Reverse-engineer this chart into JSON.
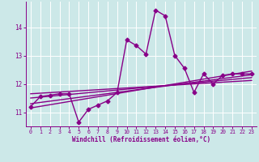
{
  "xlabel": "Windchill (Refroidissement éolien,°C)",
  "x_values": [
    0,
    1,
    2,
    3,
    4,
    5,
    6,
    7,
    8,
    9,
    10,
    11,
    12,
    13,
    14,
    15,
    16,
    17,
    18,
    19,
    20,
    21,
    22,
    23
  ],
  "y_main": [
    11.2,
    11.55,
    11.6,
    11.65,
    11.65,
    10.65,
    11.1,
    11.25,
    11.4,
    11.7,
    13.55,
    13.35,
    13.05,
    14.6,
    14.4,
    13.0,
    12.55,
    11.7,
    12.35,
    12.0,
    12.3,
    12.35,
    12.35,
    12.35
  ],
  "regression_lines": [
    [
      [
        0,
        23
      ],
      [
        11.15,
        12.45
      ]
    ],
    [
      [
        0,
        23
      ],
      [
        11.3,
        12.32
      ]
    ],
    [
      [
        0,
        23
      ],
      [
        11.5,
        12.22
      ]
    ],
    [
      [
        0,
        23
      ],
      [
        11.65,
        12.12
      ]
    ]
  ],
  "line_color": "#880088",
  "bg_color": "#cce8e8",
  "grid_color": "#ffffff",
  "ylim": [
    10.5,
    14.9
  ],
  "xlim": [
    -0.5,
    23.5
  ],
  "yticks": [
    11,
    12,
    13,
    14
  ],
  "xticks": [
    0,
    1,
    2,
    3,
    4,
    5,
    6,
    7,
    8,
    9,
    10,
    11,
    12,
    13,
    14,
    15,
    16,
    17,
    18,
    19,
    20,
    21,
    22,
    23
  ],
  "marker": "D",
  "markersize": 2.5,
  "linewidth": 1.0
}
